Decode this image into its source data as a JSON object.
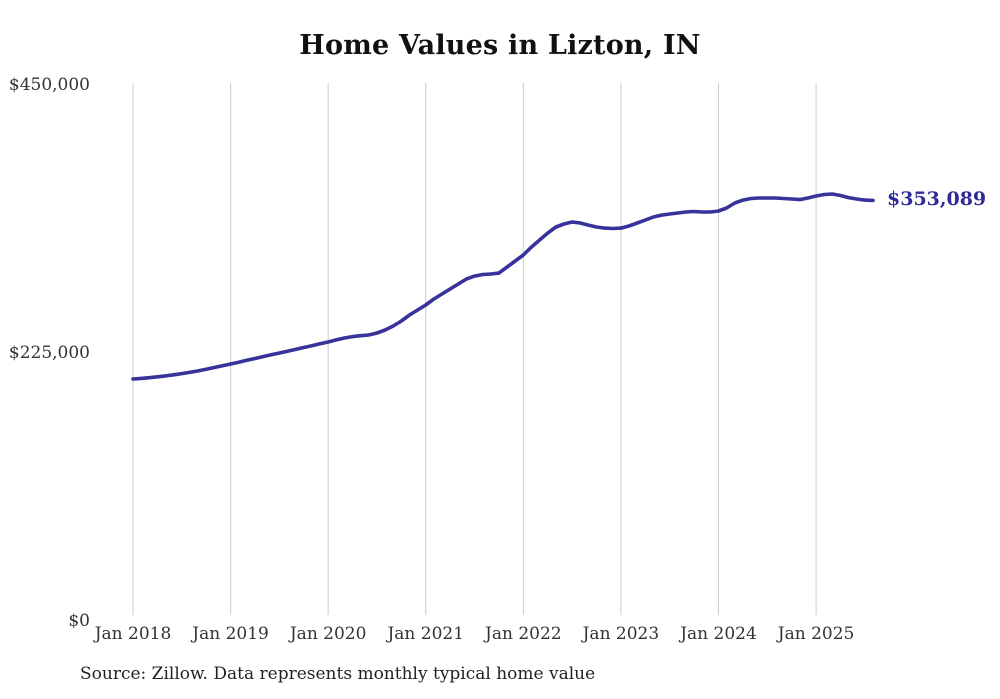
{
  "title": "Home Values in Lizton, IN",
  "end_label": "$353,089",
  "source": "Source: Zillow. Data represents monthly typical home value",
  "colors": {
    "line": "#37339b",
    "end_label": "#2f2b96",
    "grid": "#cccccc",
    "axis_text": "#333333",
    "title_text": "#111111",
    "source_text": "#222222",
    "background": "#ffffff"
  },
  "y_axis": {
    "ticks": [
      {
        "label": "$450,000",
        "value": 450000
      },
      {
        "label": "$225,000",
        "value": 225000
      },
      {
        "label": "$0",
        "value": 0
      }
    ]
  },
  "x_axis": {
    "ticks": [
      "Jan 2018",
      "Jan 2019",
      "Jan 2020",
      "Jan 2021",
      "Jan 2022",
      "Jan 2023",
      "Jan 2024",
      "Jan 2025"
    ]
  },
  "chart_data": {
    "type": "line",
    "title": "Home Values in Lizton, IN",
    "ylim": [
      0,
      450000
    ],
    "xlabel": "",
    "ylabel": "",
    "grid": "vertical-yearly",
    "legend": "none",
    "end_label": "$353,089",
    "final_value": 353089,
    "x": [
      "2018-01",
      "2018-02",
      "2018-03",
      "2018-04",
      "2018-05",
      "2018-06",
      "2018-07",
      "2018-08",
      "2018-09",
      "2018-10",
      "2018-11",
      "2018-12",
      "2019-01",
      "2019-02",
      "2019-03",
      "2019-04",
      "2019-05",
      "2019-06",
      "2019-07",
      "2019-08",
      "2019-09",
      "2019-10",
      "2019-11",
      "2019-12",
      "2020-01",
      "2020-02",
      "2020-03",
      "2020-04",
      "2020-05",
      "2020-06",
      "2020-07",
      "2020-08",
      "2020-09",
      "2020-10",
      "2020-11",
      "2020-12",
      "2021-01",
      "2021-02",
      "2021-03",
      "2021-04",
      "2021-05",
      "2021-06",
      "2021-07",
      "2021-08",
      "2021-09",
      "2021-10",
      "2021-11",
      "2021-12",
      "2022-01",
      "2022-02",
      "2022-03",
      "2022-04",
      "2022-05",
      "2022-06",
      "2022-07",
      "2022-08",
      "2022-09",
      "2022-10",
      "2022-11",
      "2022-12",
      "2023-01",
      "2023-02",
      "2023-03",
      "2023-04",
      "2023-05",
      "2023-06",
      "2023-07",
      "2023-08",
      "2023-09",
      "2023-10",
      "2023-11",
      "2023-12",
      "2024-01",
      "2024-02",
      "2024-03",
      "2024-04",
      "2024-05",
      "2024-06",
      "2024-07",
      "2024-08",
      "2024-09",
      "2024-10",
      "2024-11",
      "2024-12",
      "2025-01",
      "2025-02",
      "2025-03",
      "2025-04",
      "2025-05",
      "2025-06",
      "2025-07",
      "2025-08"
    ],
    "values": [
      203200,
      203700,
      204300,
      205000,
      205800,
      206700,
      207700,
      208800,
      210000,
      211400,
      212800,
      214300,
      215800,
      217300,
      218900,
      220400,
      222000,
      223500,
      225000,
      226500,
      228000,
      229600,
      231100,
      232700,
      234200,
      236000,
      237600,
      238800,
      239500,
      240100,
      241800,
      244300,
      247700,
      251900,
      256900,
      261100,
      265300,
      270300,
      274500,
      278700,
      282900,
      287100,
      289600,
      290900,
      291300,
      292100,
      297200,
      302200,
      307300,
      314000,
      319900,
      325700,
      330800,
      333300,
      335000,
      334100,
      332400,
      330800,
      329900,
      329500,
      329900,
      331600,
      334100,
      336600,
      339200,
      340800,
      341700,
      342500,
      343400,
      343800,
      343400,
      343400,
      344200,
      346700,
      350900,
      353400,
      354700,
      355100,
      355100,
      355100,
      354700,
      354300,
      353800,
      355100,
      356800,
      358100,
      358500,
      357200,
      355500,
      354300,
      353400,
      353089
    ]
  }
}
